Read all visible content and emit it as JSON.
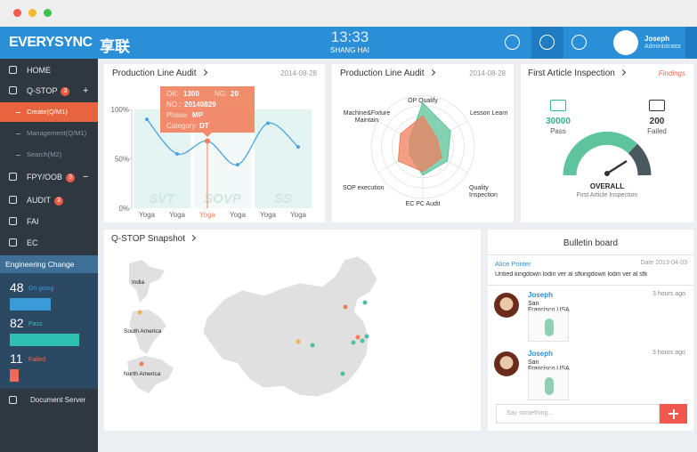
{
  "header": {
    "brand": "EVERYSYNC",
    "brand_cn": "享联",
    "time": "13:33",
    "city": "SHANG HAI",
    "user_name": "Joseph",
    "user_role": "Administrator"
  },
  "sidebar": {
    "home": "HOME",
    "qstop": "Q-STOP",
    "qstop_badge": 3,
    "qstop_toggle": "+",
    "sub_items": [
      "Create(Q/M1)",
      "Management(Q/M1)",
      "Search(M2)"
    ],
    "fpy": "FPY/OOB",
    "fpy_badge": 3,
    "fpy_toggle": "−",
    "audit": "AUDIT",
    "audit_badge": 3,
    "fai": "FAI",
    "ec": "EC",
    "engineering_change": {
      "title": "Engineering Change",
      "stats": [
        {
          "value": 48,
          "label": "On going",
          "color": "#3b9ad8"
        },
        {
          "value": 82,
          "label": "Pass",
          "color": "#2fc0b1"
        },
        {
          "value": 11,
          "label": "Failed",
          "color": "#f0685a"
        }
      ]
    },
    "document_server": "Document Server"
  },
  "chart_data": [
    {
      "type": "line",
      "title": "Production Line Audit",
      "date": "2014-08-28",
      "categories": [
        "Yoga",
        "Yoga",
        "Yoga",
        "Yoga",
        "Yoga",
        "Yoga"
      ],
      "values": [
        90,
        55,
        68,
        44,
        86,
        62
      ],
      "color": "#4aa3df",
      "highlight_index": 2,
      "highlight_color": "#f07f5d",
      "ylim": [
        0,
        100
      ],
      "yticks": [
        {
          "value": 0,
          "label": "0%"
        },
        {
          "value": 50,
          "label": "50%"
        },
        {
          "value": 100,
          "label": "100%"
        }
      ],
      "phases": [
        {
          "label": "SVT",
          "from": 0,
          "to": 1
        },
        {
          "label": "SOVP",
          "from": 2,
          "to": 3
        },
        {
          "label": "SS",
          "from": 4,
          "to": 5
        }
      ],
      "tooltip": {
        "ok_label": "OK:",
        "ok": 1300,
        "ng_label": "NG:",
        "ng": 20,
        "no_label": "NO.:",
        "no": "20140829",
        "phase_label": "Phase:",
        "phase": "MP",
        "category_label": "Category:",
        "category": "DT"
      }
    },
    {
      "type": "radar",
      "title": "Production Line Audit",
      "date": "2014-08-28",
      "axes": [
        "OP Qualify",
        "Lesson Learn",
        "Quality Inspection",
        "EC PC Audit",
        "SOP execution",
        "Machine&Fixture Maintain"
      ],
      "rlim": [
        0,
        100
      ],
      "series": [
        {
          "color": "#5cc49a",
          "values": [
            85,
            62,
            55,
            55,
            30,
            30
          ]
        },
        {
          "color": "#f07f5d",
          "values": [
            60,
            32,
            42,
            48,
            55,
            50
          ]
        }
      ]
    }
  ],
  "first_article": {
    "title": "First Article Inspection",
    "findings": "Findings",
    "pass_value": 30000,
    "pass_label": "Pass",
    "failed_value": 200,
    "failed_label": "Failed",
    "overall": "OVERALL",
    "subtitle": "First Article Inspection"
  },
  "map": {
    "title": "Q-STOP Snapshot",
    "insets": [
      "India",
      "South America",
      "North America"
    ]
  },
  "bulletin": {
    "title": "Bulletin board",
    "notice": {
      "author": "Alice Ponter",
      "date": "Date 2013-04-03",
      "text": "Untied kingdown lodin ver al sfkingdown lodin ver al sfk"
    },
    "posts": [
      {
        "name": "Joseph",
        "location": "San Francisco,USA",
        "time": "3 hours ago"
      },
      {
        "name": "Joseph",
        "location": "San Francisco,USA",
        "time": "3 hours ago"
      }
    ],
    "input_placeholder": "Say something..."
  }
}
